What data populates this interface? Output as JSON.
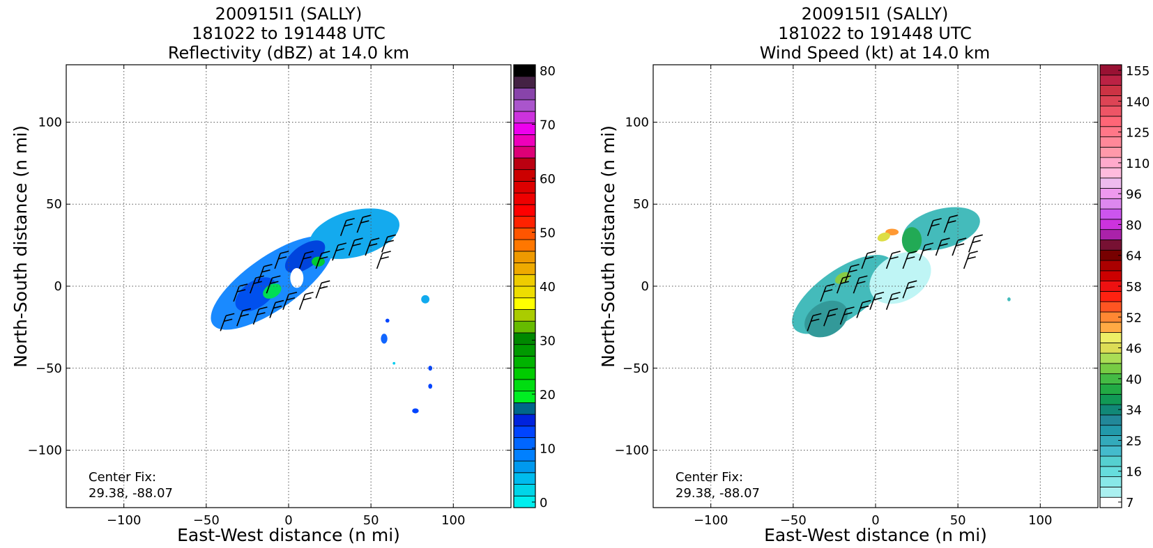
{
  "chart_data": [
    {
      "type": "heatmap",
      "title_lines": [
        "200915I1 (SALLY)",
        "181022 to 191448 UTC",
        "Reflectivity (dBZ) at 14.0 km"
      ],
      "xlabel": "East-West distance (n mi)",
      "ylabel": "North-South distance (n mi)",
      "xlim": [
        -135,
        135
      ],
      "ylim": [
        -135,
        135
      ],
      "x_ticks": [
        -100,
        -50,
        0,
        50,
        100
      ],
      "y_ticks": [
        -100,
        -50,
        0,
        50,
        100
      ],
      "x_tick_labels": [
        "−100",
        "−50",
        "0",
        "50",
        "100"
      ],
      "y_tick_labels": [
        "−100",
        "−50",
        "0",
        "50",
        "100"
      ],
      "grid": true,
      "annotation": [
        "Center Fix:",
        "29.38, -88.07"
      ],
      "colorbar": {
        "ticks": [
          "0",
          "10",
          "20",
          "30",
          "40",
          "50",
          "60",
          "70",
          "80"
        ],
        "colors": [
          "#00eeee",
          "#00d5e8",
          "#00bbee",
          "#0099ee",
          "#0080ff",
          "#0066ff",
          "#0044ff",
          "#0022dd",
          "#00668a",
          "#00ee22",
          "#00dd11",
          "#00cc00",
          "#00b300",
          "#009900",
          "#008800",
          "#66bb00",
          "#aacc00",
          "#ffff00",
          "#eedd00",
          "#eecc00",
          "#eeaa00",
          "#ee9900",
          "#ff7700",
          "#ff5500",
          "#ff2200",
          "#ff0000",
          "#ee0000",
          "#dd0000",
          "#cc0000",
          "#bb0011",
          "#dd0077",
          "#ee00bb",
          "#ee00ee",
          "#cc33dd",
          "#aa55cc",
          "#8844aa",
          "#442244",
          "#000000"
        ]
      },
      "storm_patches": [
        {
          "cx": -10,
          "cy": 2,
          "rx": 44,
          "ry": 16,
          "angle": 35,
          "color": "#1a8aff"
        },
        {
          "cx": 40,
          "cy": 32,
          "rx": 28,
          "ry": 14,
          "angle": 15,
          "color": "#14aaee"
        },
        {
          "cx": -20,
          "cy": -5,
          "rx": 14,
          "ry": 8,
          "angle": 35,
          "color": "#0050ee"
        },
        {
          "cx": 10,
          "cy": 18,
          "rx": 14,
          "ry": 7,
          "angle": 35,
          "color": "#0044dd"
        },
        {
          "cx": -10,
          "cy": -3,
          "rx": 6,
          "ry": 4,
          "angle": 30,
          "color": "#00dd55"
        },
        {
          "cx": 18,
          "cy": 15,
          "rx": 4,
          "ry": 3,
          "angle": 0,
          "color": "#00cc33"
        },
        {
          "cx": 5,
          "cy": 5,
          "rx": 4,
          "ry": 6,
          "angle": 0,
          "color": "#ffffff"
        },
        {
          "cx": 83,
          "cy": -8,
          "rx": 2.5,
          "ry": 2.5,
          "angle": 0,
          "color": "#11aaee"
        },
        {
          "cx": 58,
          "cy": -32,
          "rx": 2,
          "ry": 3,
          "angle": 0,
          "color": "#1166ff"
        },
        {
          "cx": 86,
          "cy": -50,
          "rx": 1.2,
          "ry": 1.5,
          "angle": 0,
          "color": "#0044ff"
        },
        {
          "cx": 86,
          "cy": -61,
          "rx": 1.2,
          "ry": 1.5,
          "angle": 0,
          "color": "#0044ff"
        },
        {
          "cx": 77,
          "cy": -76,
          "rx": 2,
          "ry": 1.5,
          "angle": 0,
          "color": "#0044ff"
        },
        {
          "cx": 60,
          "cy": -21,
          "rx": 1.2,
          "ry": 1.2,
          "angle": 0,
          "color": "#0044ff"
        },
        {
          "cx": 64,
          "cy": -47,
          "rx": 0.8,
          "ry": 0.8,
          "angle": 0,
          "color": "#00ccee"
        }
      ],
      "wind_barbs": [
        {
          "x": -38,
          "y": -18
        },
        {
          "x": -28,
          "y": -15
        },
        {
          "x": -18,
          "y": -14
        },
        {
          "x": -8,
          "y": -10
        },
        {
          "x": -30,
          "y": 0
        },
        {
          "x": -20,
          "y": 5
        },
        {
          "x": -10,
          "y": 5
        },
        {
          "x": 0,
          "y": -5
        },
        {
          "x": 10,
          "y": -5
        },
        {
          "x": 20,
          "y": 2
        },
        {
          "x": -15,
          "y": 12
        },
        {
          "x": -5,
          "y": 20
        },
        {
          "x": 10,
          "y": 20
        },
        {
          "x": 20,
          "y": 20
        },
        {
          "x": 30,
          "y": 25
        },
        {
          "x": 40,
          "y": 28
        },
        {
          "x": 50,
          "y": 28
        },
        {
          "x": 60,
          "y": 30
        },
        {
          "x": 35,
          "y": 40
        },
        {
          "x": 45,
          "y": 42
        },
        {
          "x": 57,
          "y": 20
        }
      ]
    },
    {
      "type": "heatmap",
      "title_lines": [
        "200915I1 (SALLY)",
        "181022 to 191448 UTC",
        "Wind Speed (kt) at 14.0 km"
      ],
      "xlabel": "East-West distance (n mi)",
      "ylabel": "North-South distance (n mi)",
      "xlim": [
        -135,
        135
      ],
      "ylim": [
        -135,
        135
      ],
      "x_ticks": [
        -100,
        -50,
        0,
        50,
        100
      ],
      "y_ticks": [
        -100,
        -50,
        0,
        50,
        100
      ],
      "x_tick_labels": [
        "−100",
        "−50",
        "0",
        "50",
        "100"
      ],
      "y_tick_labels": [
        "−100",
        "−50",
        "0",
        "50",
        "100"
      ],
      "grid": true,
      "annotation": [
        "Center Fix:",
        "29.38, -88.07"
      ],
      "colorbar": {
        "ticks": [
          "7",
          "16",
          "25",
          "34",
          "40",
          "46",
          "52",
          "58",
          "64",
          "80",
          "96",
          "110",
          "125",
          "140",
          "155"
        ],
        "colors": [
          "#ffffff",
          "#aaf0f0",
          "#88e8e8",
          "#66dddd",
          "#55d0d0",
          "#44bbcc",
          "#33aabb",
          "#2299aa",
          "#228899",
          "#118877",
          "#119955",
          "#22aa44",
          "#44bb44",
          "#77cc44",
          "#aadd55",
          "#dddd55",
          "#eeee66",
          "#ffaa44",
          "#ff8833",
          "#ff5522",
          "#ff2211",
          "#ee1111",
          "#cc0000",
          "#aa0000",
          "#770000",
          "#771133",
          "#aa22aa",
          "#cc33dd",
          "#cc55ee",
          "#dd88ee",
          "#ee99ee",
          "#eebbee",
          "#ffbbdd",
          "#ffaacc",
          "#ff99aa",
          "#ff8899",
          "#ff7788",
          "#ff6677",
          "#ee5566",
          "#dd4455",
          "#cc3344",
          "#bb2244",
          "#991133"
        ]
      },
      "storm_patches": [
        {
          "cx": -20,
          "cy": -5,
          "rx": 36,
          "ry": 15,
          "angle": 35,
          "color": "#44bbbb"
        },
        {
          "cx": 40,
          "cy": 35,
          "rx": 24,
          "ry": 12,
          "angle": 15,
          "color": "#44bbbb"
        },
        {
          "cx": 15,
          "cy": 5,
          "rx": 20,
          "ry": 14,
          "angle": 30,
          "color": "#bff5f5"
        },
        {
          "cx": -30,
          "cy": -20,
          "rx": 14,
          "ry": 10,
          "angle": 30,
          "color": "#339999"
        },
        {
          "cx": 22,
          "cy": 28,
          "rx": 6,
          "ry": 8,
          "angle": 0,
          "color": "#22aa55"
        },
        {
          "cx": 10,
          "cy": 33,
          "rx": 4,
          "ry": 2,
          "angle": 0,
          "color": "#ff9933"
        },
        {
          "cx": 5,
          "cy": 30,
          "rx": 4,
          "ry": 2.5,
          "angle": 20,
          "color": "#dddd44"
        },
        {
          "cx": -20,
          "cy": 5,
          "rx": 5,
          "ry": 3,
          "angle": 30,
          "color": "#88cc44"
        },
        {
          "cx": 81,
          "cy": -8,
          "rx": 1,
          "ry": 1.2,
          "angle": 0,
          "color": "#44bbbb"
        }
      ],
      "wind_barbs": [
        {
          "x": -38,
          "y": -18
        },
        {
          "x": -28,
          "y": -15
        },
        {
          "x": -18,
          "y": -14
        },
        {
          "x": -8,
          "y": -10
        },
        {
          "x": -30,
          "y": 0
        },
        {
          "x": -20,
          "y": 5
        },
        {
          "x": -10,
          "y": 5
        },
        {
          "x": 0,
          "y": -5
        },
        {
          "x": 10,
          "y": -5
        },
        {
          "x": 20,
          "y": 2
        },
        {
          "x": -15,
          "y": 12
        },
        {
          "x": -5,
          "y": 20
        },
        {
          "x": 10,
          "y": 20
        },
        {
          "x": 20,
          "y": 20
        },
        {
          "x": 30,
          "y": 25
        },
        {
          "x": 40,
          "y": 28
        },
        {
          "x": 50,
          "y": 28
        },
        {
          "x": 60,
          "y": 30
        },
        {
          "x": 35,
          "y": 40
        },
        {
          "x": 45,
          "y": 42
        },
        {
          "x": 57,
          "y": 20
        }
      ]
    }
  ]
}
